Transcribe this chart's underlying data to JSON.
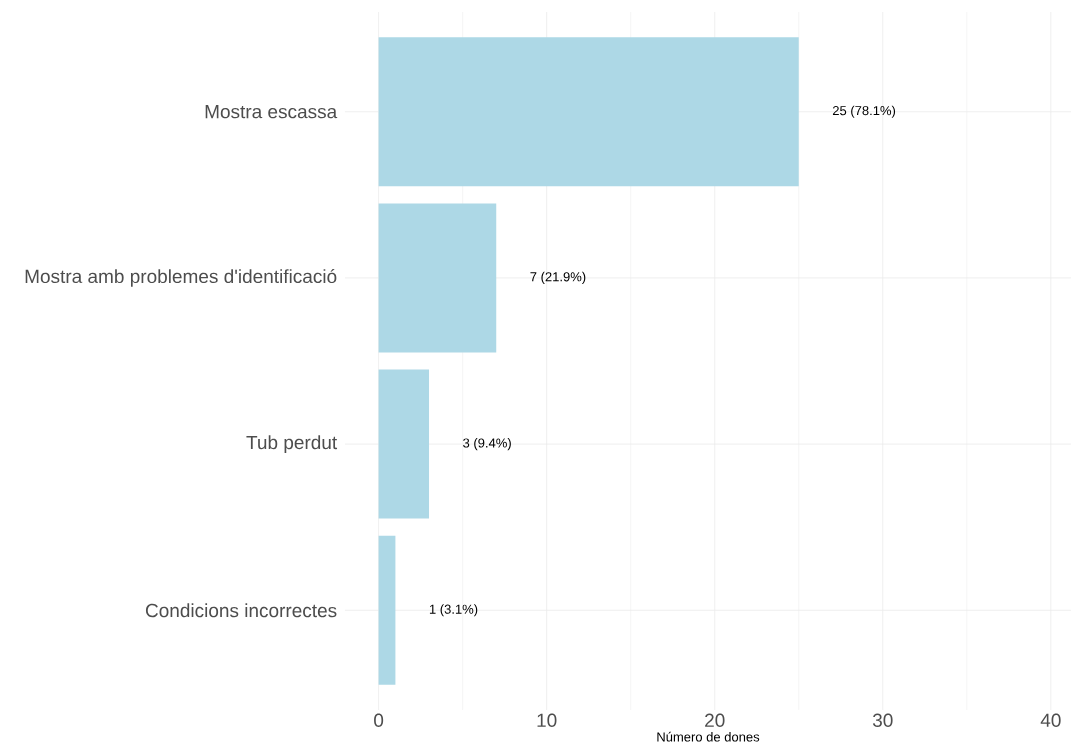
{
  "chart_data": {
    "type": "bar",
    "orientation": "horizontal",
    "xlabel": "Número de dones",
    "categories": [
      "Mostra escassa",
      "Mostra amb problemes d'identificació",
      "Tub perdut",
      "Condicions incorrectes"
    ],
    "values": [
      25,
      7,
      3,
      1
    ],
    "value_labels": [
      "25 (78.1%)",
      "7 (21.9%)",
      "3 (9.4%)",
      "1 (3.1%)"
    ],
    "color": "#add8e6",
    "xlim": [
      -2,
      41.2
    ],
    "xticks": [
      0,
      10,
      20,
      30,
      40
    ],
    "grid": true
  }
}
